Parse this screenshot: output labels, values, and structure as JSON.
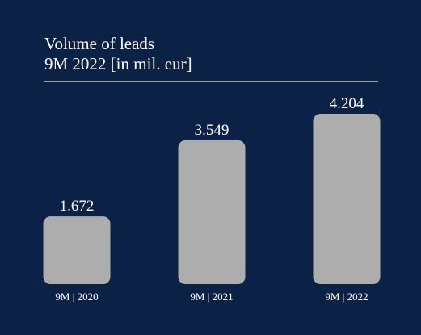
{
  "colors": {
    "background": "#0c2146",
    "bar": "#adadad",
    "text": "#ffffff",
    "rule": "#9a9da4"
  },
  "chart_data": {
    "type": "bar",
    "title_lines": [
      "Volume of leads",
      "9M 2022 [in mil. eur]"
    ],
    "categories": [
      "9M | 2020",
      "9M | 2021",
      "9M | 2022"
    ],
    "values": [
      1.672,
      3.549,
      4.204
    ],
    "value_labels": [
      "1.672",
      "3.549",
      "4.204"
    ],
    "xlabel": "",
    "ylabel": "",
    "grid": false,
    "legend": "none"
  }
}
